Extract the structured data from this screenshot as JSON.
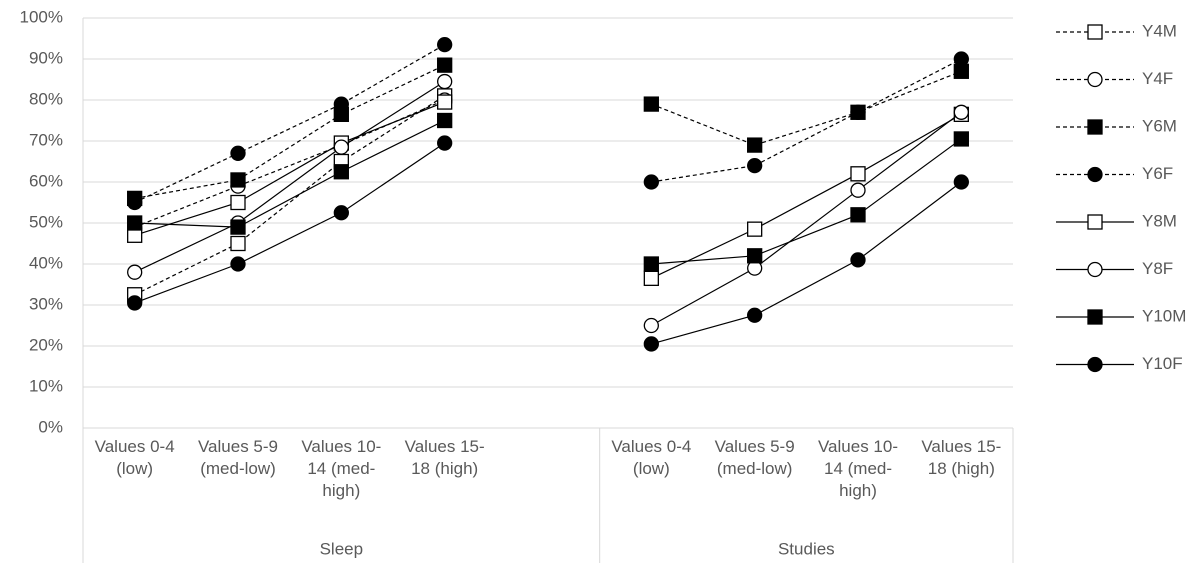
{
  "chart_data": {
    "type": "line",
    "categories": [
      "Values 0-4 (low)",
      "Values 5-9 (med-low)",
      "Values 10-14 (med-high)",
      "Values 15-18 (high)",
      null,
      "Values 0-4 (low)",
      "Values 5-9 (med-low)",
      "Values 10-14 (med-high)",
      "Values 15-18 (high)"
    ],
    "groups": [
      "Sleep",
      "Studies"
    ],
    "ylim": [
      0,
      100
    ],
    "yticks": [
      {
        "value": 0,
        "label": "0%"
      },
      {
        "value": 10,
        "label": "10%"
      },
      {
        "value": 20,
        "label": "20%"
      },
      {
        "value": 30,
        "label": "30%"
      },
      {
        "value": 40,
        "label": "40%"
      },
      {
        "value": 50,
        "label": "50%"
      },
      {
        "value": 60,
        "label": "60%"
      },
      {
        "value": 70,
        "label": "70%"
      },
      {
        "value": 80,
        "label": "80%"
      },
      {
        "value": 90,
        "label": "90%"
      },
      {
        "value": 100,
        "label": "100%"
      }
    ],
    "grid": true,
    "legend": "right",
    "series": [
      {
        "name": "Y4M",
        "color": "#000000",
        "marker": "square",
        "filled": false,
        "dashed": true,
        "values": [
          32.5,
          45,
          65,
          81,
          null,
          null,
          null,
          null,
          null
        ]
      },
      {
        "name": "Y4F",
        "color": "#000000",
        "marker": "circle",
        "filled": false,
        "dashed": true,
        "values": [
          49,
          59,
          69,
          80,
          null,
          null,
          null,
          null,
          null
        ]
      },
      {
        "name": "Y6M",
        "color": "#000000",
        "marker": "square",
        "filled": true,
        "dashed": true,
        "values": [
          56,
          60.5,
          76.5,
          88.5,
          null,
          79,
          69,
          77,
          87
        ]
      },
      {
        "name": "Y6F",
        "color": "#000000",
        "marker": "circle",
        "filled": true,
        "dashed": true,
        "values": [
          55,
          67,
          79,
          93.5,
          null,
          60,
          64,
          77,
          90
        ]
      },
      {
        "name": "Y8M",
        "color": "#000000",
        "marker": "square",
        "filled": false,
        "dashed": false,
        "values": [
          47,
          55,
          69.5,
          79.5,
          null,
          36.5,
          48.5,
          62,
          76.5
        ]
      },
      {
        "name": "Y8F",
        "color": "#000000",
        "marker": "circle",
        "filled": false,
        "dashed": false,
        "values": [
          38,
          50,
          68.5,
          84.5,
          null,
          25,
          39,
          58,
          77
        ]
      },
      {
        "name": "Y10M",
        "color": "#000000",
        "marker": "square",
        "filled": true,
        "dashed": false,
        "values": [
          50,
          49,
          62.5,
          75,
          null,
          40,
          42,
          52,
          70.5
        ]
      },
      {
        "name": "Y10F",
        "color": "#000000",
        "marker": "circle",
        "filled": true,
        "dashed": false,
        "values": [
          30.5,
          40,
          52.5,
          69.5,
          null,
          20.5,
          27.5,
          41,
          60
        ]
      }
    ]
  }
}
